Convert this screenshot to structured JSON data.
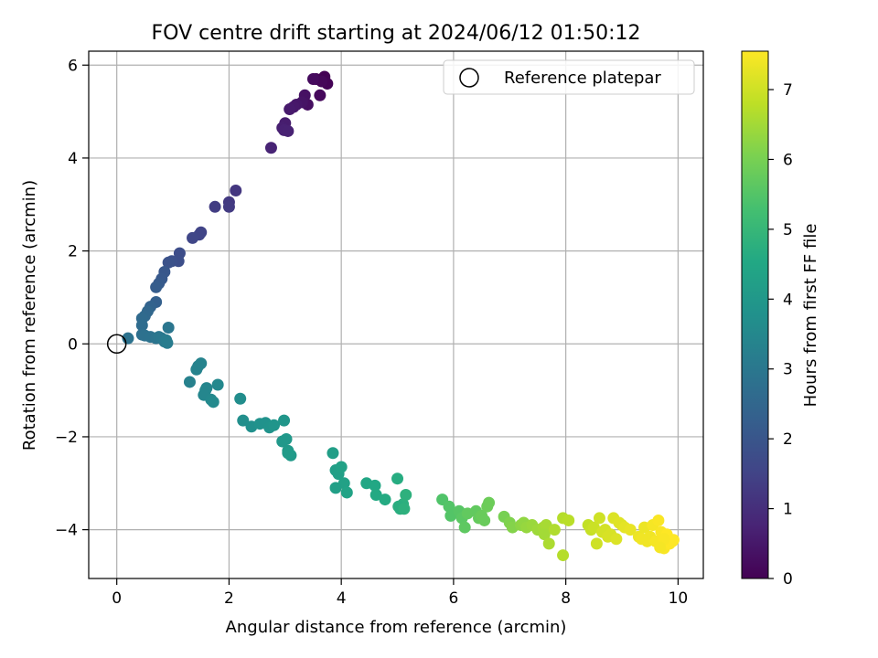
{
  "chart_data": {
    "type": "scatter",
    "title": "FOV centre drift starting at 2024/06/12 01:50:12",
    "xlabel": "Angular distance from reference (arcmin)",
    "ylabel": "Rotation from reference (arcmin)",
    "xlim": [
      -0.5,
      10.45
    ],
    "ylim": [
      -5.05,
      6.3
    ],
    "xticks": [
      0,
      2,
      4,
      6,
      8,
      10
    ],
    "yticks": [
      -4,
      -2,
      0,
      2,
      4,
      6
    ],
    "xtick_labels": [
      "0",
      "2",
      "4",
      "6",
      "8",
      "10"
    ],
    "ytick_labels": [
      "−4",
      "−2",
      "0",
      "2",
      "4",
      "6"
    ],
    "grid": true,
    "legend": {
      "position": "top-right",
      "entries": [
        "Reference platepar"
      ]
    },
    "colorbar": {
      "label": "Hours from first FF file",
      "range": [
        0,
        7.55
      ],
      "ticks": [
        0,
        1,
        2,
        3,
        4,
        5,
        6,
        7
      ],
      "tick_labels": [
        "0",
        "1",
        "2",
        "3",
        "4",
        "5",
        "6",
        "7"
      ],
      "colormap": "viridis"
    },
    "reference_point": {
      "x": 0,
      "y": 0
    },
    "series": [
      {
        "x": [
          3.55,
          3.7,
          3.75,
          3.65,
          3.62,
          3.5,
          3.4,
          3.35,
          3.3,
          3.2,
          3.15,
          3.08,
          3.0,
          2.95,
          2.98,
          3.05,
          2.75,
          2.12,
          2.0,
          2.0,
          1.75,
          1.5,
          1.47,
          1.35,
          1.12,
          1.1,
          0.98,
          0.92,
          0.85,
          0.8,
          0.75,
          0.7,
          0.7,
          0.6,
          0.55,
          0.5,
          0.45,
          0.45,
          0.45,
          0.5,
          0.6,
          0.7,
          0.75,
          0.8,
          0.85,
          0.88,
          0.9,
          0.92,
          0.2,
          1.3,
          1.45,
          1.42,
          1.5,
          1.6,
          1.58,
          1.55,
          1.68,
          1.72,
          1.8,
          2.2,
          2.25,
          2.4,
          2.55,
          2.65,
          2.72,
          2.8,
          2.98,
          2.95,
          3.02,
          3.05,
          3.1,
          3.05,
          3.9,
          3.85,
          3.95,
          4.0,
          4.05,
          4.1,
          3.9,
          4.45,
          4.6,
          4.62,
          4.78,
          5.0,
          5.05,
          5.1,
          5.15,
          5.02,
          5.12,
          5.8,
          5.92,
          5.95,
          6.1,
          6.15,
          6.2,
          6.25,
          6.4,
          6.45,
          6.5,
          6.55,
          6.6,
          6.63,
          6.9,
          7.0,
          7.05,
          7.2,
          7.25,
          7.3,
          7.4,
          7.5,
          7.6,
          7.65,
          7.62,
          7.7,
          7.8,
          7.95,
          8.05,
          7.95,
          8.4,
          8.45,
          8.5,
          8.55,
          8.6,
          8.65,
          8.7,
          8.75,
          8.8,
          8.85,
          8.9,
          8.95,
          9.0,
          9.05,
          9.15,
          9.3,
          9.4,
          9.45,
          9.5,
          9.55,
          9.6,
          9.65,
          9.7,
          9.75,
          9.8,
          9.85,
          9.9,
          9.92,
          9.75,
          9.68,
          9.35
        ],
        "y": [
          5.7,
          5.75,
          5.6,
          5.65,
          5.35,
          5.7,
          5.15,
          5.35,
          5.2,
          5.15,
          5.1,
          5.05,
          4.75,
          4.65,
          4.6,
          4.58,
          4.22,
          3.3,
          3.05,
          2.95,
          2.95,
          2.4,
          2.35,
          2.28,
          1.95,
          1.78,
          1.78,
          1.75,
          1.55,
          1.4,
          1.3,
          1.22,
          0.9,
          0.8,
          0.7,
          0.6,
          0.55,
          0.4,
          0.2,
          0.18,
          0.15,
          0.12,
          0.15,
          0.12,
          0.05,
          0.08,
          0.02,
          0.35,
          0.12,
          -0.82,
          -0.48,
          -0.55,
          -0.42,
          -0.95,
          -1.0,
          -1.1,
          -1.2,
          -1.25,
          -0.88,
          -1.18,
          -1.65,
          -1.78,
          -1.72,
          -1.7,
          -1.8,
          -1.75,
          -1.65,
          -2.1,
          -2.05,
          -2.3,
          -2.4,
          -2.35,
          -2.72,
          -2.35,
          -2.8,
          -2.65,
          -3.0,
          -3.2,
          -3.1,
          -3.0,
          -3.05,
          -3.25,
          -3.35,
          -2.9,
          -3.55,
          -3.45,
          -3.25,
          -3.5,
          -3.55,
          -3.35,
          -3.5,
          -3.7,
          -3.6,
          -3.75,
          -3.95,
          -3.65,
          -3.6,
          -3.75,
          -3.7,
          -3.8,
          -3.5,
          -3.42,
          -3.72,
          -3.85,
          -3.95,
          -3.9,
          -3.85,
          -3.95,
          -3.9,
          -4.0,
          -3.95,
          -3.9,
          -4.1,
          -4.3,
          -4.0,
          -3.75,
          -3.8,
          -4.55,
          -3.9,
          -4.0,
          -3.95,
          -4.3,
          -3.75,
          -4.05,
          -4.0,
          -4.15,
          -4.1,
          -3.75,
          -4.2,
          -3.85,
          -3.9,
          -3.95,
          -4.0,
          -4.15,
          -3.95,
          -4.25,
          -4.15,
          -3.9,
          -4.25,
          -3.8,
          -4.05,
          -4.4,
          -4.1,
          -4.3,
          -4.25,
          -4.22,
          -4.2,
          -4.38,
          -4.2
        ],
        "hours": [
          0.1,
          0.0,
          0.05,
          0.12,
          0.15,
          0.2,
          0.3,
          0.35,
          0.4,
          0.45,
          0.5,
          0.55,
          0.6,
          0.65,
          0.7,
          0.72,
          0.75,
          1.2,
          1.25,
          1.3,
          1.35,
          1.5,
          1.55,
          1.6,
          1.75,
          1.8,
          1.85,
          1.9,
          2.05,
          2.1,
          2.15,
          2.2,
          2.3,
          2.4,
          2.5,
          2.55,
          2.6,
          2.65,
          2.75,
          2.8,
          2.85,
          2.9,
          2.95,
          3.0,
          3.05,
          3.1,
          3.15,
          2.95,
          2.85,
          3.3,
          3.3,
          3.35,
          3.35,
          3.4,
          3.45,
          3.45,
          3.5,
          3.55,
          3.5,
          3.65,
          3.7,
          3.75,
          3.8,
          3.8,
          3.85,
          3.9,
          3.95,
          4.0,
          4.0,
          4.05,
          4.05,
          4.1,
          4.2,
          4.2,
          4.25,
          4.3,
          4.3,
          4.35,
          4.25,
          4.45,
          4.5,
          4.55,
          4.6,
          4.65,
          4.7,
          4.75,
          4.8,
          4.7,
          4.8,
          5.45,
          5.5,
          5.5,
          5.55,
          5.6,
          5.65,
          5.7,
          5.7,
          5.75,
          5.8,
          5.8,
          5.85,
          5.85,
          6.0,
          6.1,
          6.15,
          6.25,
          6.3,
          6.35,
          6.4,
          6.45,
          6.5,
          6.55,
          6.5,
          6.6,
          6.65,
          6.7,
          6.75,
          6.7,
          6.85,
          6.9,
          6.95,
          7.0,
          7.0,
          7.05,
          7.05,
          7.1,
          7.1,
          7.15,
          7.15,
          7.2,
          7.2,
          7.25,
          7.3,
          7.35,
          7.35,
          7.4,
          7.4,
          7.45,
          7.45,
          7.5,
          7.5,
          7.5,
          7.55,
          7.55,
          7.55,
          7.55,
          7.5,
          7.45,
          7.4
        ]
      }
    ]
  }
}
